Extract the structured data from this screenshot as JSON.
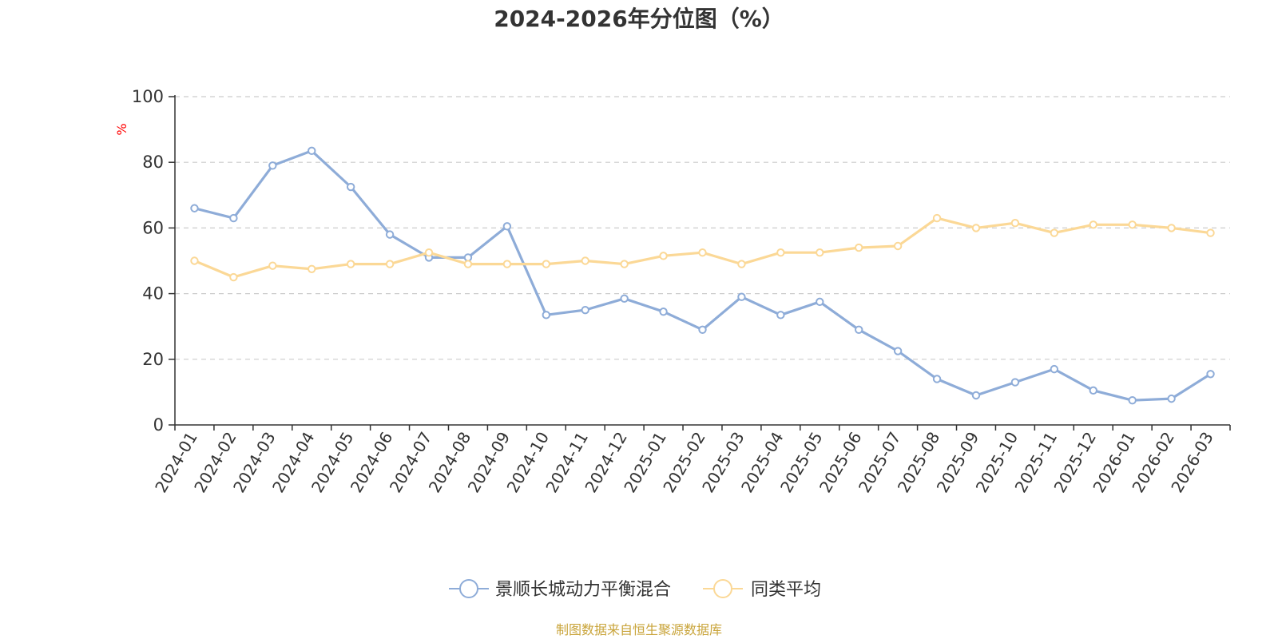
{
  "chart_data": {
    "type": "line",
    "title": "2024-2026年分位图（%）",
    "ylabel": "%",
    "xlabel": "",
    "ylim": [
      0,
      100
    ],
    "yticks": [
      0,
      20,
      40,
      60,
      80,
      100
    ],
    "grid": true,
    "legend_position": "bottom-center",
    "categories": [
      "2024-01",
      "2024-02",
      "2024-03",
      "2024-04",
      "2024-05",
      "2024-06",
      "2024-07",
      "2024-08",
      "2024-09",
      "2024-10",
      "2024-11",
      "2024-12",
      "2025-01",
      "2025-02",
      "2025-03",
      "2025-04",
      "2025-05",
      "2025-06",
      "2025-07",
      "2025-08",
      "2025-09",
      "2025-10",
      "2025-11",
      "2025-12",
      "2026-01",
      "2026-02",
      "2026-03"
    ],
    "series": [
      {
        "name": "景顺长城动力平衡混合",
        "color": "#8eacd8",
        "values": [
          66,
          63,
          79,
          83.5,
          72.5,
          58,
          51,
          51,
          60.5,
          33.5,
          35,
          38.5,
          34.5,
          29,
          39,
          33.5,
          37.5,
          29,
          22.5,
          14,
          9,
          13,
          17,
          10.5,
          7.5,
          8,
          15.5
        ]
      },
      {
        "name": "同类平均",
        "color": "#fbd896",
        "values": [
          50,
          45,
          48.5,
          47.5,
          49,
          49,
          52.5,
          49,
          49,
          49,
          50,
          49,
          51.5,
          52.5,
          49,
          52.5,
          52.5,
          54,
          54.5,
          63,
          60,
          61.5,
          58.5,
          61,
          61,
          60,
          58.5
        ]
      }
    ]
  },
  "source": "制图数据来自恒生聚源数据库",
  "colors": {
    "axis": "#333333",
    "grid": "#cccccc",
    "unit": "#ff0000",
    "source": "#c9a43a"
  }
}
